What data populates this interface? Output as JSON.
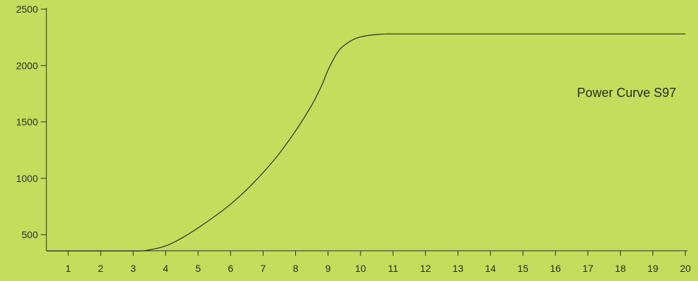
{
  "colors": {
    "background": "#c5dc5c",
    "line": "#2b2b2b"
  },
  "chart_data": {
    "type": "line",
    "title": "",
    "annotation": "Power Curve S97",
    "xlabel": "",
    "ylabel": "",
    "x_ticks": [
      1,
      2,
      3,
      4,
      5,
      6,
      7,
      8,
      9,
      10,
      11,
      12,
      13,
      14,
      15,
      16,
      17,
      18,
      19,
      20
    ],
    "y_ticks": [
      500,
      1000,
      1500,
      2000,
      2500
    ],
    "xlim": [
      0.35,
      20
    ],
    "ylim": [
      355,
      2530
    ],
    "grid": false,
    "series": [
      {
        "x": [
          0.35,
          1,
          2,
          3,
          3.4,
          4,
          4.5,
          5,
          5.5,
          6,
          6.5,
          7,
          7.5,
          8,
          8.5,
          8.8,
          9,
          9.3,
          9.6,
          9.9,
          10.2,
          10.5,
          10.8,
          11,
          12,
          15,
          20
        ],
        "y": [
          355,
          355,
          355,
          355,
          360,
          400,
          470,
          560,
          660,
          770,
          900,
          1050,
          1220,
          1420,
          1650,
          1820,
          1960,
          2120,
          2200,
          2245,
          2265,
          2275,
          2280,
          2280,
          2280,
          2280,
          2280
        ]
      }
    ]
  }
}
